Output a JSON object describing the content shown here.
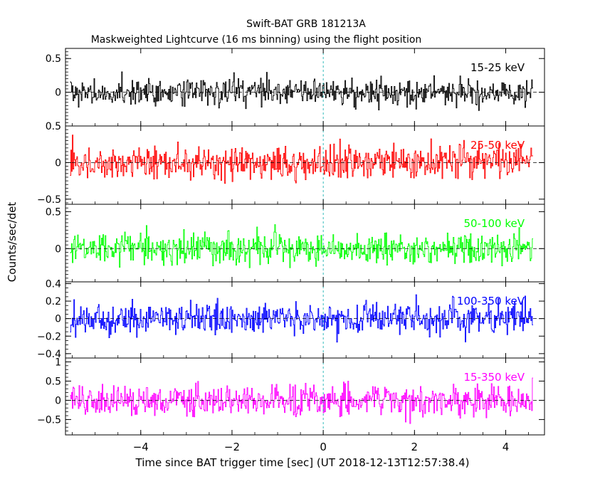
{
  "header": {
    "title": "Swift-BAT GRB 181213A",
    "subtitle": "Maskweighted Lightcurve (16 ms binning) using the flight position"
  },
  "axes": {
    "xlabel": "Time since BAT trigger time [sec] (UT 2018-12-13T12:57:38.4)",
    "ylabel": "Counts/sec/det"
  },
  "chart_data": [
    {
      "type": "line",
      "title": "",
      "series": [
        {
          "name": "15-25 keV",
          "color": "#000000",
          "amplitude": 0.14
        }
      ],
      "x_range": [
        -5.55,
        4.6
      ],
      "xlim": [
        -5.65,
        4.85
      ],
      "ylim": [
        -0.5,
        0.65
      ],
      "y_ticks": [
        {
          "v": 0,
          "t": "0"
        },
        {
          "v": 0.5,
          "t": "0.5"
        }
      ],
      "x_ticks": [
        {
          "v": -4,
          "t": "−4"
        },
        {
          "v": -2,
          "t": "−2"
        },
        {
          "v": 0,
          "t": "0"
        },
        {
          "v": 2,
          "t": "2"
        },
        {
          "v": 4,
          "t": "4"
        }
      ],
      "grid": false
    },
    {
      "type": "line",
      "title": "",
      "series": [
        {
          "name": "25-50 keV",
          "color": "#ff0000",
          "amplitude": 0.16
        }
      ],
      "x_range": [
        -5.55,
        4.6
      ],
      "xlim": [
        -5.65,
        4.85
      ],
      "ylim": [
        -0.57,
        0.5
      ],
      "y_ticks": [
        {
          "v": -0.5,
          "t": "−0.5"
        },
        {
          "v": 0,
          "t": "0"
        },
        {
          "v": 0.5,
          "t": "0.5"
        }
      ],
      "x_ticks": [
        {
          "v": -4,
          "t": "−4"
        },
        {
          "v": -2,
          "t": "−2"
        },
        {
          "v": 0,
          "t": "0"
        },
        {
          "v": 2,
          "t": "2"
        },
        {
          "v": 4,
          "t": "4"
        }
      ],
      "grid": false
    },
    {
      "type": "line",
      "title": "",
      "series": [
        {
          "name": "50-100 keV",
          "color": "#00ff00",
          "amplitude": 0.15
        }
      ],
      "x_range": [
        -5.55,
        4.6
      ],
      "xlim": [
        -5.65,
        4.85
      ],
      "ylim": [
        -0.45,
        0.6
      ],
      "y_ticks": [
        {
          "v": 0,
          "t": "0"
        },
        {
          "v": 0.5,
          "t": "0.5"
        }
      ],
      "x_ticks": [
        {
          "v": -4,
          "t": "−4"
        },
        {
          "v": -2,
          "t": "−2"
        },
        {
          "v": 0,
          "t": "0"
        },
        {
          "v": 2,
          "t": "2"
        },
        {
          "v": 4,
          "t": "4"
        }
      ],
      "grid": false
    },
    {
      "type": "line",
      "title": "",
      "series": [
        {
          "name": "100-350 keV",
          "color": "#0000ff",
          "amplitude": 0.13
        }
      ],
      "x_range": [
        -5.55,
        4.6
      ],
      "xlim": [
        -5.65,
        4.85
      ],
      "ylim": [
        -0.45,
        0.42
      ],
      "y_ticks": [
        {
          "v": -0.4,
          "t": "−0.4"
        },
        {
          "v": -0.2,
          "t": "−0.2"
        },
        {
          "v": 0,
          "t": "0"
        },
        {
          "v": 0.2,
          "t": "0.2"
        },
        {
          "v": 0.4,
          "t": "0.4"
        }
      ],
      "x_ticks": [
        {
          "v": -4,
          "t": "−4"
        },
        {
          "v": -2,
          "t": "−2"
        },
        {
          "v": 0,
          "t": "0"
        },
        {
          "v": 2,
          "t": "2"
        },
        {
          "v": 4,
          "t": "4"
        }
      ],
      "grid": false
    },
    {
      "type": "line",
      "title": "",
      "series": [
        {
          "name": "15-350 keV",
          "color": "#ff00ff",
          "amplitude": 0.28
        }
      ],
      "x_range": [
        -5.55,
        4.6
      ],
      "xlim": [
        -5.65,
        4.85
      ],
      "ylim": [
        -0.9,
        1.1
      ],
      "y_ticks": [
        {
          "v": -0.5,
          "t": "−0.5"
        },
        {
          "v": 0,
          "t": "0"
        },
        {
          "v": 0.5,
          "t": "0.5"
        },
        {
          "v": 1,
          "t": "1"
        }
      ],
      "x_ticks": [
        {
          "v": -4,
          "t": "−4"
        },
        {
          "v": -2,
          "t": "−2"
        },
        {
          "v": 0,
          "t": "0"
        },
        {
          "v": 2,
          "t": "2"
        },
        {
          "v": 4,
          "t": "4"
        }
      ],
      "grid": false
    }
  ]
}
